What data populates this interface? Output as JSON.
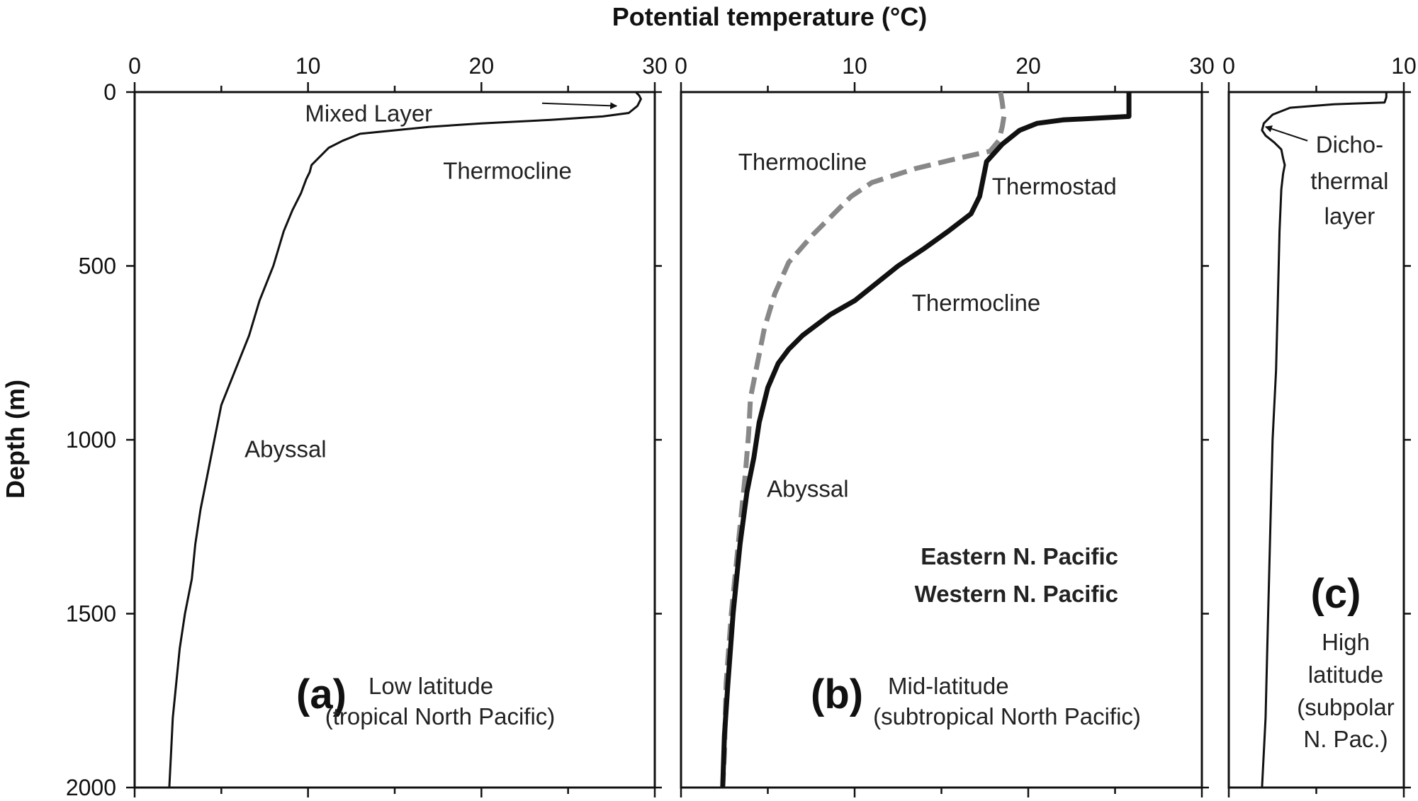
{
  "figure": {
    "xlabel": "Potential temperature (°C)",
    "ylabel": "Depth (m)"
  },
  "chart_data": [
    {
      "type": "line",
      "panel": "(a)",
      "caption": [
        "Low latitude",
        "(tropical North Pacific)"
      ],
      "xlim": [
        0,
        30
      ],
      "ylim": [
        2000,
        0
      ],
      "x_ticks": [
        0,
        10,
        20,
        30
      ],
      "y_ticks": [
        0,
        500,
        1000,
        1500,
        2000
      ],
      "series": [
        {
          "color": "#111111",
          "style": "solid",
          "width": "thin",
          "points": [
            [
              28.9,
              0
            ],
            [
              29.1,
              10
            ],
            [
              29.2,
              20
            ],
            [
              29.0,
              40
            ],
            [
              28.5,
              60
            ],
            [
              27.0,
              70
            ],
            [
              24.0,
              80
            ],
            [
              20.0,
              90
            ],
            [
              17.0,
              100
            ],
            [
              15.0,
              110
            ],
            [
              13.0,
              120
            ],
            [
              12.0,
              140
            ],
            [
              11.2,
              160
            ],
            [
              10.6,
              190
            ],
            [
              10.2,
              210
            ],
            [
              10.1,
              230
            ],
            [
              9.9,
              250
            ],
            [
              9.6,
              290
            ],
            [
              9.1,
              340
            ],
            [
              8.6,
              400
            ],
            [
              8.0,
              500
            ],
            [
              7.2,
              600
            ],
            [
              6.6,
              700
            ],
            [
              5.8,
              800
            ],
            [
              5.0,
              900
            ],
            [
              4.6,
              1000
            ],
            [
              4.2,
              1100
            ],
            [
              3.8,
              1200
            ],
            [
              3.5,
              1300
            ],
            [
              3.3,
              1400
            ],
            [
              2.9,
              1500
            ],
            [
              2.6,
              1600
            ],
            [
              2.4,
              1700
            ],
            [
              2.2,
              1800
            ],
            [
              2.1,
              1900
            ],
            [
              2.0,
              2000
            ]
          ]
        }
      ],
      "annotations": [
        {
          "text": "Mixed Layer",
          "x": 13.5,
          "y": 60
        },
        {
          "text": "Thermocline",
          "x": 21.5,
          "y": 225
        },
        {
          "text": "Abyssal",
          "x": 8.7,
          "y": 1025
        }
      ]
    },
    {
      "type": "line",
      "panel": "(b)",
      "caption": [
        "Mid-latitude",
        "(subtropical North Pacific)"
      ],
      "xlim": [
        0,
        30
      ],
      "ylim": [
        2000,
        0
      ],
      "x_ticks": [
        0,
        10,
        20,
        30
      ],
      "y_ticks": [
        0,
        500,
        1000,
        1500,
        2000
      ],
      "legend": "bottom-right",
      "series": [
        {
          "name": "Eastern N. Pacific",
          "color": "#888888",
          "style": "dashed",
          "points": [
            [
              18.4,
              0
            ],
            [
              18.5,
              30
            ],
            [
              18.6,
              70
            ],
            [
              18.5,
              100
            ],
            [
              18.3,
              140
            ],
            [
              17.8,
              170
            ],
            [
              16.0,
              190
            ],
            [
              13.5,
              220
            ],
            [
              11.0,
              260
            ],
            [
              9.8,
              300
            ],
            [
              8.8,
              350
            ],
            [
              7.6,
              410
            ],
            [
              6.2,
              490
            ],
            [
              5.4,
              580
            ],
            [
              4.8,
              680
            ],
            [
              4.4,
              780
            ],
            [
              4.0,
              880
            ],
            [
              3.9,
              980
            ],
            [
              3.7,
              1100
            ],
            [
              3.3,
              1300
            ],
            [
              2.9,
              1500
            ],
            [
              2.6,
              1700
            ],
            [
              2.5,
              1900
            ],
            [
              2.4,
              2000
            ]
          ]
        },
        {
          "name": "Western N. Pacific",
          "color": "#111111",
          "style": "solid",
          "points": [
            [
              25.8,
              0
            ],
            [
              25.8,
              40
            ],
            [
              25.8,
              70
            ],
            [
              24.0,
              75
            ],
            [
              22.0,
              80
            ],
            [
              20.5,
              90
            ],
            [
              19.5,
              110
            ],
            [
              18.5,
              150
            ],
            [
              17.6,
              200
            ],
            [
              17.4,
              250
            ],
            [
              17.2,
              300
            ],
            [
              16.7,
              350
            ],
            [
              15.4,
              400
            ],
            [
              14.0,
              450
            ],
            [
              12.5,
              500
            ],
            [
              11.0,
              560
            ],
            [
              10.0,
              600
            ],
            [
              8.6,
              640
            ],
            [
              7.0,
              700
            ],
            [
              6.2,
              740
            ],
            [
              5.6,
              780
            ],
            [
              5.0,
              850
            ],
            [
              4.5,
              950
            ],
            [
              4.2,
              1050
            ],
            [
              3.8,
              1150
            ],
            [
              3.4,
              1300
            ],
            [
              3.0,
              1500
            ],
            [
              2.7,
              1700
            ],
            [
              2.5,
              1850
            ],
            [
              2.4,
              2000
            ]
          ]
        }
      ],
      "annotations": [
        {
          "text": "Thermocline",
          "x": 7.0,
          "y": 200
        },
        {
          "text": "Thermostad",
          "x": 21.5,
          "y": 270
        },
        {
          "text": "Thermocline",
          "x": 17.0,
          "y": 605
        },
        {
          "text": "Abyssal",
          "x": 7.3,
          "y": 1140
        }
      ]
    },
    {
      "type": "line",
      "panel": "(c)",
      "caption": [
        "High",
        "latitude",
        "(subpolar",
        "N. Pac.)"
      ],
      "xlim": [
        0,
        10
      ],
      "ylim": [
        2000,
        0
      ],
      "x_ticks": [
        0,
        10
      ],
      "y_ticks": [
        0,
        500,
        1000,
        1500,
        2000
      ],
      "series": [
        {
          "color": "#111111",
          "style": "solid",
          "width": "thin",
          "points": [
            [
              9.0,
              0
            ],
            [
              9.0,
              15
            ],
            [
              8.9,
              30
            ],
            [
              6.0,
              35
            ],
            [
              3.5,
              45
            ],
            [
              2.5,
              65
            ],
            [
              2.0,
              90
            ],
            [
              1.9,
              110
            ],
            [
              2.1,
              125
            ],
            [
              2.6,
              145
            ],
            [
              3.0,
              165
            ],
            [
              3.1,
              190
            ],
            [
              3.2,
              210
            ],
            [
              3.1,
              235
            ],
            [
              3.0,
              280
            ],
            [
              2.9,
              400
            ],
            [
              2.8,
              600
            ],
            [
              2.7,
              800
            ],
            [
              2.5,
              1000
            ],
            [
              2.4,
              1200
            ],
            [
              2.3,
              1400
            ],
            [
              2.2,
              1600
            ],
            [
              2.1,
              1800
            ],
            [
              1.9,
              2000
            ]
          ]
        }
      ],
      "annotations": [
        {
          "text": "Dicho-",
          "x": 6.9,
          "y": 150
        },
        {
          "text": "thermal",
          "x": 6.9,
          "y": 255
        },
        {
          "text": "layer",
          "x": 6.9,
          "y": 355
        }
      ]
    }
  ]
}
